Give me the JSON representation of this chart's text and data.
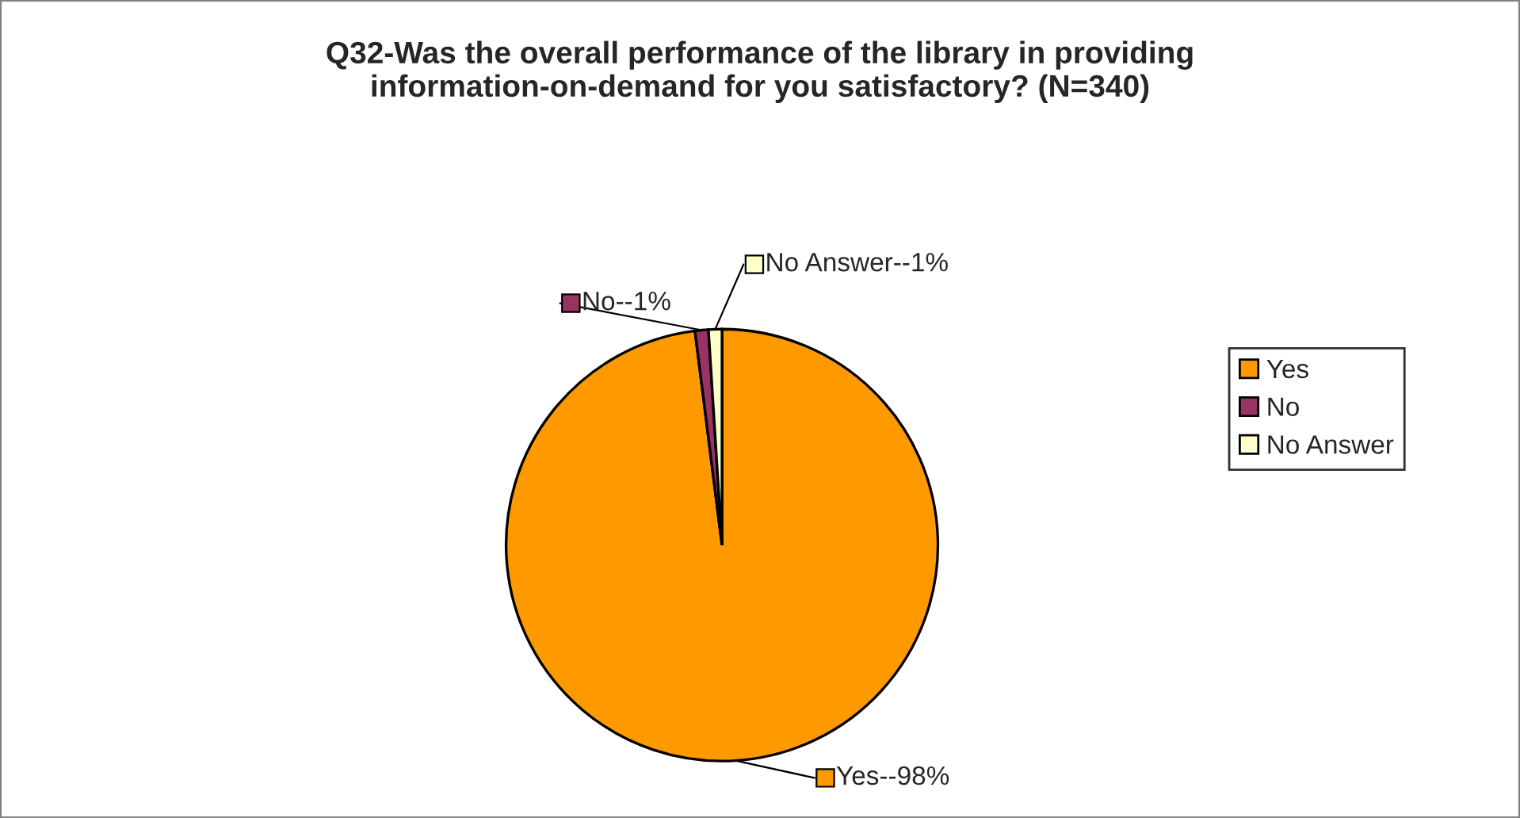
{
  "chart_data": {
    "type": "pie",
    "title": "Q32-Was the overall performance of the library in providing\ninformation-on-demand for you satisfactory? (N=340)",
    "categories": [
      "Yes",
      "No",
      "No Answer"
    ],
    "values": [
      98,
      1,
      1
    ],
    "colors": [
      "#ff9900",
      "#993366",
      "#ffffcc"
    ],
    "value_labels": [
      "Yes--98%",
      "No--1%",
      "No Answer--1%"
    ],
    "legend": "right"
  }
}
